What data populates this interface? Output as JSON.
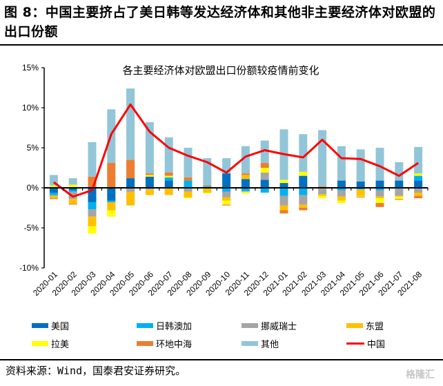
{
  "figure": {
    "title": "图 8：中国主要挤占了美日韩等发达经济体和其他非主要经济体对欧盟的出口份额",
    "source": "资料来源：Wind，国泰君安证券研究。",
    "watermark": "格隆汇"
  },
  "chart_data": {
    "type": "bar",
    "stacked": true,
    "title": "各主要经济体对欧盟出口份额较疫情前变化",
    "xlabel": "",
    "ylabel": "",
    "ylim": [
      -10,
      15
    ],
    "yticks": [
      -10,
      -5,
      0,
      5,
      10,
      15
    ],
    "ytick_labels": [
      "-10%",
      "-5%",
      "0%",
      "5%",
      "10%",
      "15%"
    ],
    "grid": false,
    "legend_position": "bottom",
    "categories": [
      "2020-01",
      "2020-02",
      "2020-03",
      "2020-04",
      "2020-05",
      "2020-06",
      "2020-07",
      "2020-08",
      "2020-09",
      "2020-10",
      "2020-11",
      "2020-12",
      "2021-01",
      "2021-02",
      "2021-03",
      "2021-04",
      "2021-05",
      "2021-06",
      "2021-07",
      "2021-08"
    ],
    "series": [
      {
        "name": "美国",
        "color": "#0070C0",
        "values": [
          -0.6,
          -0.3,
          -1.8,
          -1.6,
          1.2,
          1.4,
          0.9,
          0.0,
          0.1,
          1.8,
          1.1,
          1.0,
          0.6,
          1.5,
          0.1,
          0.9,
          0.8,
          0.9,
          0.9,
          0.9
        ]
      },
      {
        "name": "日韩澳加",
        "color": "#00B0F0",
        "values": [
          -0.3,
          -0.2,
          -0.9,
          -0.2,
          -0.1,
          -0.1,
          0.4,
          0.9,
          0.1,
          -0.5,
          -0.4,
          -0.6,
          -1.0,
          -0.9,
          -0.1,
          -0.3,
          -0.2,
          -0.3,
          -0.1,
          0.6
        ]
      },
      {
        "name": "挪威瑞士",
        "color": "#A5A5A5",
        "values": [
          -0.1,
          -0.9,
          -0.9,
          0.0,
          -0.4,
          -0.1,
          -0.1,
          -0.5,
          -0.1,
          -0.7,
          -0.1,
          0.9,
          -1.2,
          -1.2,
          -0.7,
          -0.8,
          0.0,
          -0.8,
          -0.9,
          -0.6
        ]
      },
      {
        "name": "东盟",
        "color": "#FFC000",
        "values": [
          -0.3,
          -0.6,
          -1.2,
          -1.0,
          -1.7,
          -0.7,
          -0.8,
          -0.7,
          -0.5,
          -0.4,
          0.5,
          0.0,
          -0.6,
          -0.4,
          -0.2,
          -0.5,
          -0.8,
          -0.2,
          -0.1,
          -0.4
        ]
      },
      {
        "name": "拉美",
        "color": "#FFFF00",
        "values": [
          0.3,
          0.4,
          -0.9,
          -0.8,
          0.0,
          0.2,
          0.2,
          -0.1,
          -0.1,
          -0.5,
          -0.2,
          0.6,
          0.4,
          0.5,
          -0.3,
          -0.3,
          -0.1,
          -0.6,
          -0.3,
          0.3
        ]
      },
      {
        "name": "环地中海",
        "color": "#ED7D31",
        "values": [
          -0.1,
          -0.1,
          1.4,
          3.1,
          2.3,
          0.2,
          0.4,
          0.4,
          0.1,
          -0.1,
          0.2,
          0.6,
          -0.4,
          -0.3,
          0.1,
          0.0,
          -0.1,
          -0.5,
          -0.1,
          -0.3
        ]
      },
      {
        "name": "其他",
        "color": "#92C5D8",
        "values": [
          1.3,
          0.8,
          4.3,
          6.7,
          8.9,
          6.4,
          4.4,
          3.7,
          3.4,
          1.9,
          3.4,
          2.8,
          6.3,
          4.7,
          7.0,
          4.3,
          4.0,
          4.1,
          2.3,
          3.3
        ]
      }
    ],
    "line": {
      "name": "中国",
      "color": "#FF0000",
      "values": [
        0.7,
        -1.1,
        -0.3,
        6.7,
        10.4,
        7.0,
        5.0,
        4.0,
        3.2,
        1.9,
        3.9,
        4.7,
        4.2,
        3.8,
        6.0,
        3.7,
        3.6,
        2.7,
        1.5,
        3.1
      ]
    }
  }
}
